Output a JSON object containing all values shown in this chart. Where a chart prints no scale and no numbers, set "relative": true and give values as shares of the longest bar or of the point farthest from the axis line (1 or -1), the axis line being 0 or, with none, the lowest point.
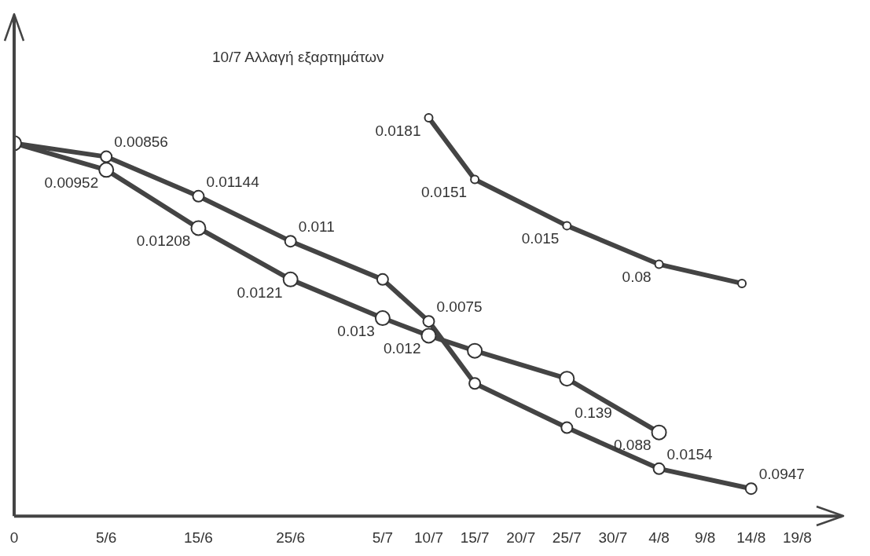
{
  "chart_data": {
    "type": "line",
    "relative": true,
    "marker": "circle",
    "grid": false,
    "legend": false,
    "annotations": [
      "10/7 Αλλαγή εξαρτημάτων",
      {
        "text": "0.00952",
        "x": "--06-05",
        "y": 0.869
      },
      {
        "text": "0.01208",
        "x": "--06-15",
        "y": 0.723
      },
      {
        "text": "0.0121",
        "x": "--06-25",
        "y": 0.594
      },
      {
        "text": "0.013",
        "x": "--07-05",
        "y": 0.497
      },
      {
        "text": "0.012",
        "x": "--07-10",
        "y": 0.453
      },
      {
        "text": "0.088",
        "x": "--08-04",
        "y": 0.21
      },
      {
        "text": "0.00856",
        "x": "--06-05",
        "y": 0.902
      },
      {
        "text": "0.01144",
        "x": "--06-15",
        "y": 0.803
      },
      {
        "text": "0.011",
        "x": "--06-25",
        "y": 0.69
      },
      {
        "text": "0.0075",
        "x": "--07-10",
        "y": 0.489
      },
      {
        "text": "0.139",
        "x": "--07-25",
        "y": 0.222
      },
      {
        "text": "0.0154",
        "x": "--08-04",
        "y": 0.119
      },
      {
        "text": "0.0947",
        "x": "--08-14",
        "y": 0.069
      },
      {
        "text": "0.0181",
        "x": "--07-10",
        "y": 1
      },
      {
        "text": "0.0151",
        "x": "--07-15",
        "y": 0.845
      },
      {
        "text": "0.015",
        "x": "--07-25",
        "y": 0.729
      },
      {
        "text": "0.08",
        "x": "--08-04",
        "y": 0.632
      }
    ],
    "xlim": [
      "--05-26",
      "--08-24"
    ],
    "xticks": [
      {
        "value": "--05-26",
        "label": "0"
      },
      {
        "value": "--06-05",
        "label": "5/6"
      },
      {
        "value": "--06-15",
        "label": "15/6"
      },
      {
        "value": "--06-25",
        "label": "25/6"
      },
      {
        "value": "--07-05",
        "label": "5/7"
      },
      {
        "value": "--07-10",
        "label": "10/7"
      },
      {
        "value": "--07-15",
        "label": "15/7"
      },
      {
        "value": "--07-20",
        "label": "20/7"
      },
      {
        "value": "--07-25",
        "label": "25/7"
      },
      {
        "value": "--07-30",
        "label": "30/7"
      },
      {
        "value": "--08-04",
        "label": "4/8"
      },
      {
        "value": "--08-09",
        "label": "9/8"
      },
      {
        "value": "--08-14",
        "label": "14/8"
      },
      {
        "value": "--08-19",
        "label": "19/8"
      }
    ],
    "series": [
      {
        "color": "#444444",
        "x": [
          "--05-26",
          "--06-05",
          "--06-15",
          "--06-25",
          "--07-05",
          "--07-10",
          "--07-15",
          "--07-25",
          "--08-04"
        ],
        "values": [
          0.936,
          0.869,
          0.723,
          0.594,
          0.497,
          0.453,
          0.415,
          0.345,
          0.21
        ]
      },
      {
        "color": "#444444",
        "x": [
          "--05-26",
          "--06-05",
          "--06-15",
          "--06-25",
          "--07-05",
          "--07-10",
          "--07-15",
          "--07-25",
          "--08-04",
          "--08-14"
        ],
        "values": [
          0.936,
          0.902,
          0.803,
          0.69,
          0.594,
          0.489,
          0.333,
          0.222,
          0.119,
          0.069
        ]
      },
      {
        "color": "#444444",
        "x": [
          "--07-10",
          "--07-15",
          "--07-25",
          "--08-04",
          "--08-13"
        ],
        "values": [
          1,
          0.845,
          0.729,
          0.632,
          0.584
        ]
      }
    ]
  }
}
